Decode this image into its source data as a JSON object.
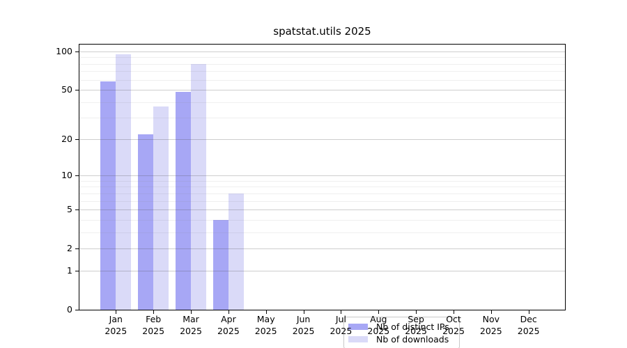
{
  "title": "spatstat.utils 2025",
  "chart_data": {
    "type": "bar",
    "scale": "log1p",
    "grid": true,
    "title": "spatstat.utils 2025",
    "xlabel": "",
    "ylabel": "",
    "categories": [
      "Jan",
      "Feb",
      "Mar",
      "Apr",
      "May",
      "Jun",
      "Jul",
      "Aug",
      "Sep",
      "Oct",
      "Nov",
      "Dec"
    ],
    "year": "2025",
    "series": [
      {
        "name": "Nb of distinct IPs",
        "color": "#a7a7f5",
        "values": [
          58,
          22,
          48,
          4,
          null,
          null,
          null,
          null,
          null,
          null,
          null,
          null
        ]
      },
      {
        "name": "Nb of downloads",
        "color": "#dadaf8",
        "values": [
          95,
          37,
          80,
          7,
          null,
          null,
          null,
          null,
          null,
          null,
          null,
          null
        ]
      }
    ],
    "yticks": [
      0,
      1,
      2,
      5,
      10,
      20,
      50,
      100
    ],
    "minor_gridlines": [
      3,
      4,
      6,
      7,
      8,
      9,
      30,
      40,
      60,
      70,
      80,
      90
    ],
    "ylim": [
      0,
      113
    ],
    "legend_position": "lower-center"
  }
}
